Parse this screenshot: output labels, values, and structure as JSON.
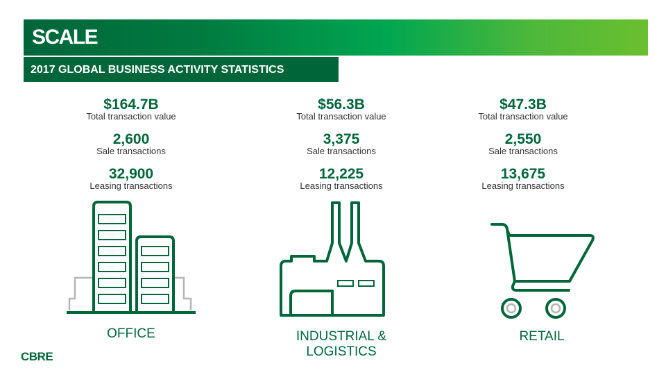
{
  "header": {
    "title": "SCALE",
    "subtitle": "2017 GLOBAL BUSINESS ACTIVITY STATISTICS"
  },
  "sectors": [
    {
      "name": "OFFICE",
      "total_value": "$164.7B",
      "total_label": "Total transaction value",
      "sales": "2,600",
      "sales_label": "Sale transactions",
      "leasing": "32,900",
      "leasing_label": "Leasing transactions",
      "icon": "office-building-icon"
    },
    {
      "name": "INDUSTRIAL & LOGISTICS",
      "total_value": "$56.3B",
      "total_label": "Total transaction value",
      "sales": "3,375",
      "sales_label": "Sale transactions",
      "leasing": "12,225",
      "leasing_label": "Leasing transactions",
      "icon": "factory-icon"
    },
    {
      "name": "RETAIL",
      "total_value": "$47.3B",
      "total_label": "Total transaction value",
      "sales": "2,550",
      "sales_label": "Sale transactions",
      "leasing": "13,675",
      "leasing_label": "Leasing transactions",
      "icon": "shopping-cart-icon"
    }
  ],
  "footer": {
    "logo": "CBRE"
  },
  "colors": {
    "primary": "#00663a",
    "accent": "#6abf2e",
    "text": "#333333",
    "outline_gray": "#b5b5b5"
  }
}
